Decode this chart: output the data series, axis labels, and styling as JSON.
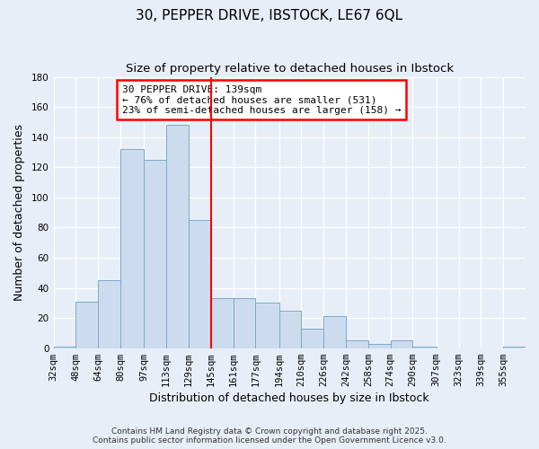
{
  "title": "30, PEPPER DRIVE, IBSTOCK, LE67 6QL",
  "subtitle": "Size of property relative to detached houses in Ibstock",
  "xlabel": "Distribution of detached houses by size in Ibstock",
  "ylabel": "Number of detached properties",
  "bin_labels": [
    "32sqm",
    "48sqm",
    "64sqm",
    "80sqm",
    "97sqm",
    "113sqm",
    "129sqm",
    "145sqm",
    "161sqm",
    "177sqm",
    "194sqm",
    "210sqm",
    "226sqm",
    "242sqm",
    "258sqm",
    "274sqm",
    "290sqm",
    "307sqm",
    "323sqm",
    "339sqm",
    "355sqm"
  ],
  "bin_edges": [
    32,
    48,
    64,
    80,
    97,
    113,
    129,
    145,
    161,
    177,
    194,
    210,
    226,
    242,
    258,
    274,
    290,
    307,
    323,
    339,
    355
  ],
  "bar_heights": [
    1,
    31,
    45,
    132,
    125,
    148,
    85,
    33,
    33,
    30,
    25,
    13,
    21,
    5,
    3,
    5,
    1,
    0,
    0,
    0,
    1
  ],
  "bar_color": "#ccdcee",
  "bar_edge_color": "#7aaaca",
  "vline_x": 145,
  "vline_color": "red",
  "ylim": [
    0,
    180
  ],
  "yticks": [
    0,
    20,
    40,
    60,
    80,
    100,
    120,
    140,
    160,
    180
  ],
  "annotation_title": "30 PEPPER DRIVE: 139sqm",
  "annotation_line1": "← 76% of detached houses are smaller (531)",
  "annotation_line2": "23% of semi-detached houses are larger (158) →",
  "footer1": "Contains HM Land Registry data © Crown copyright and database right 2025.",
  "footer2": "Contains public sector information licensed under the Open Government Licence v3.0.",
  "background_color": "#e8eef8",
  "plot_bg_color": "#e8eef8",
  "grid_color": "#ffffff",
  "title_fontsize": 11,
  "subtitle_fontsize": 9.5,
  "axis_label_fontsize": 9,
  "tick_fontsize": 7.5,
  "footer_fontsize": 6.5
}
